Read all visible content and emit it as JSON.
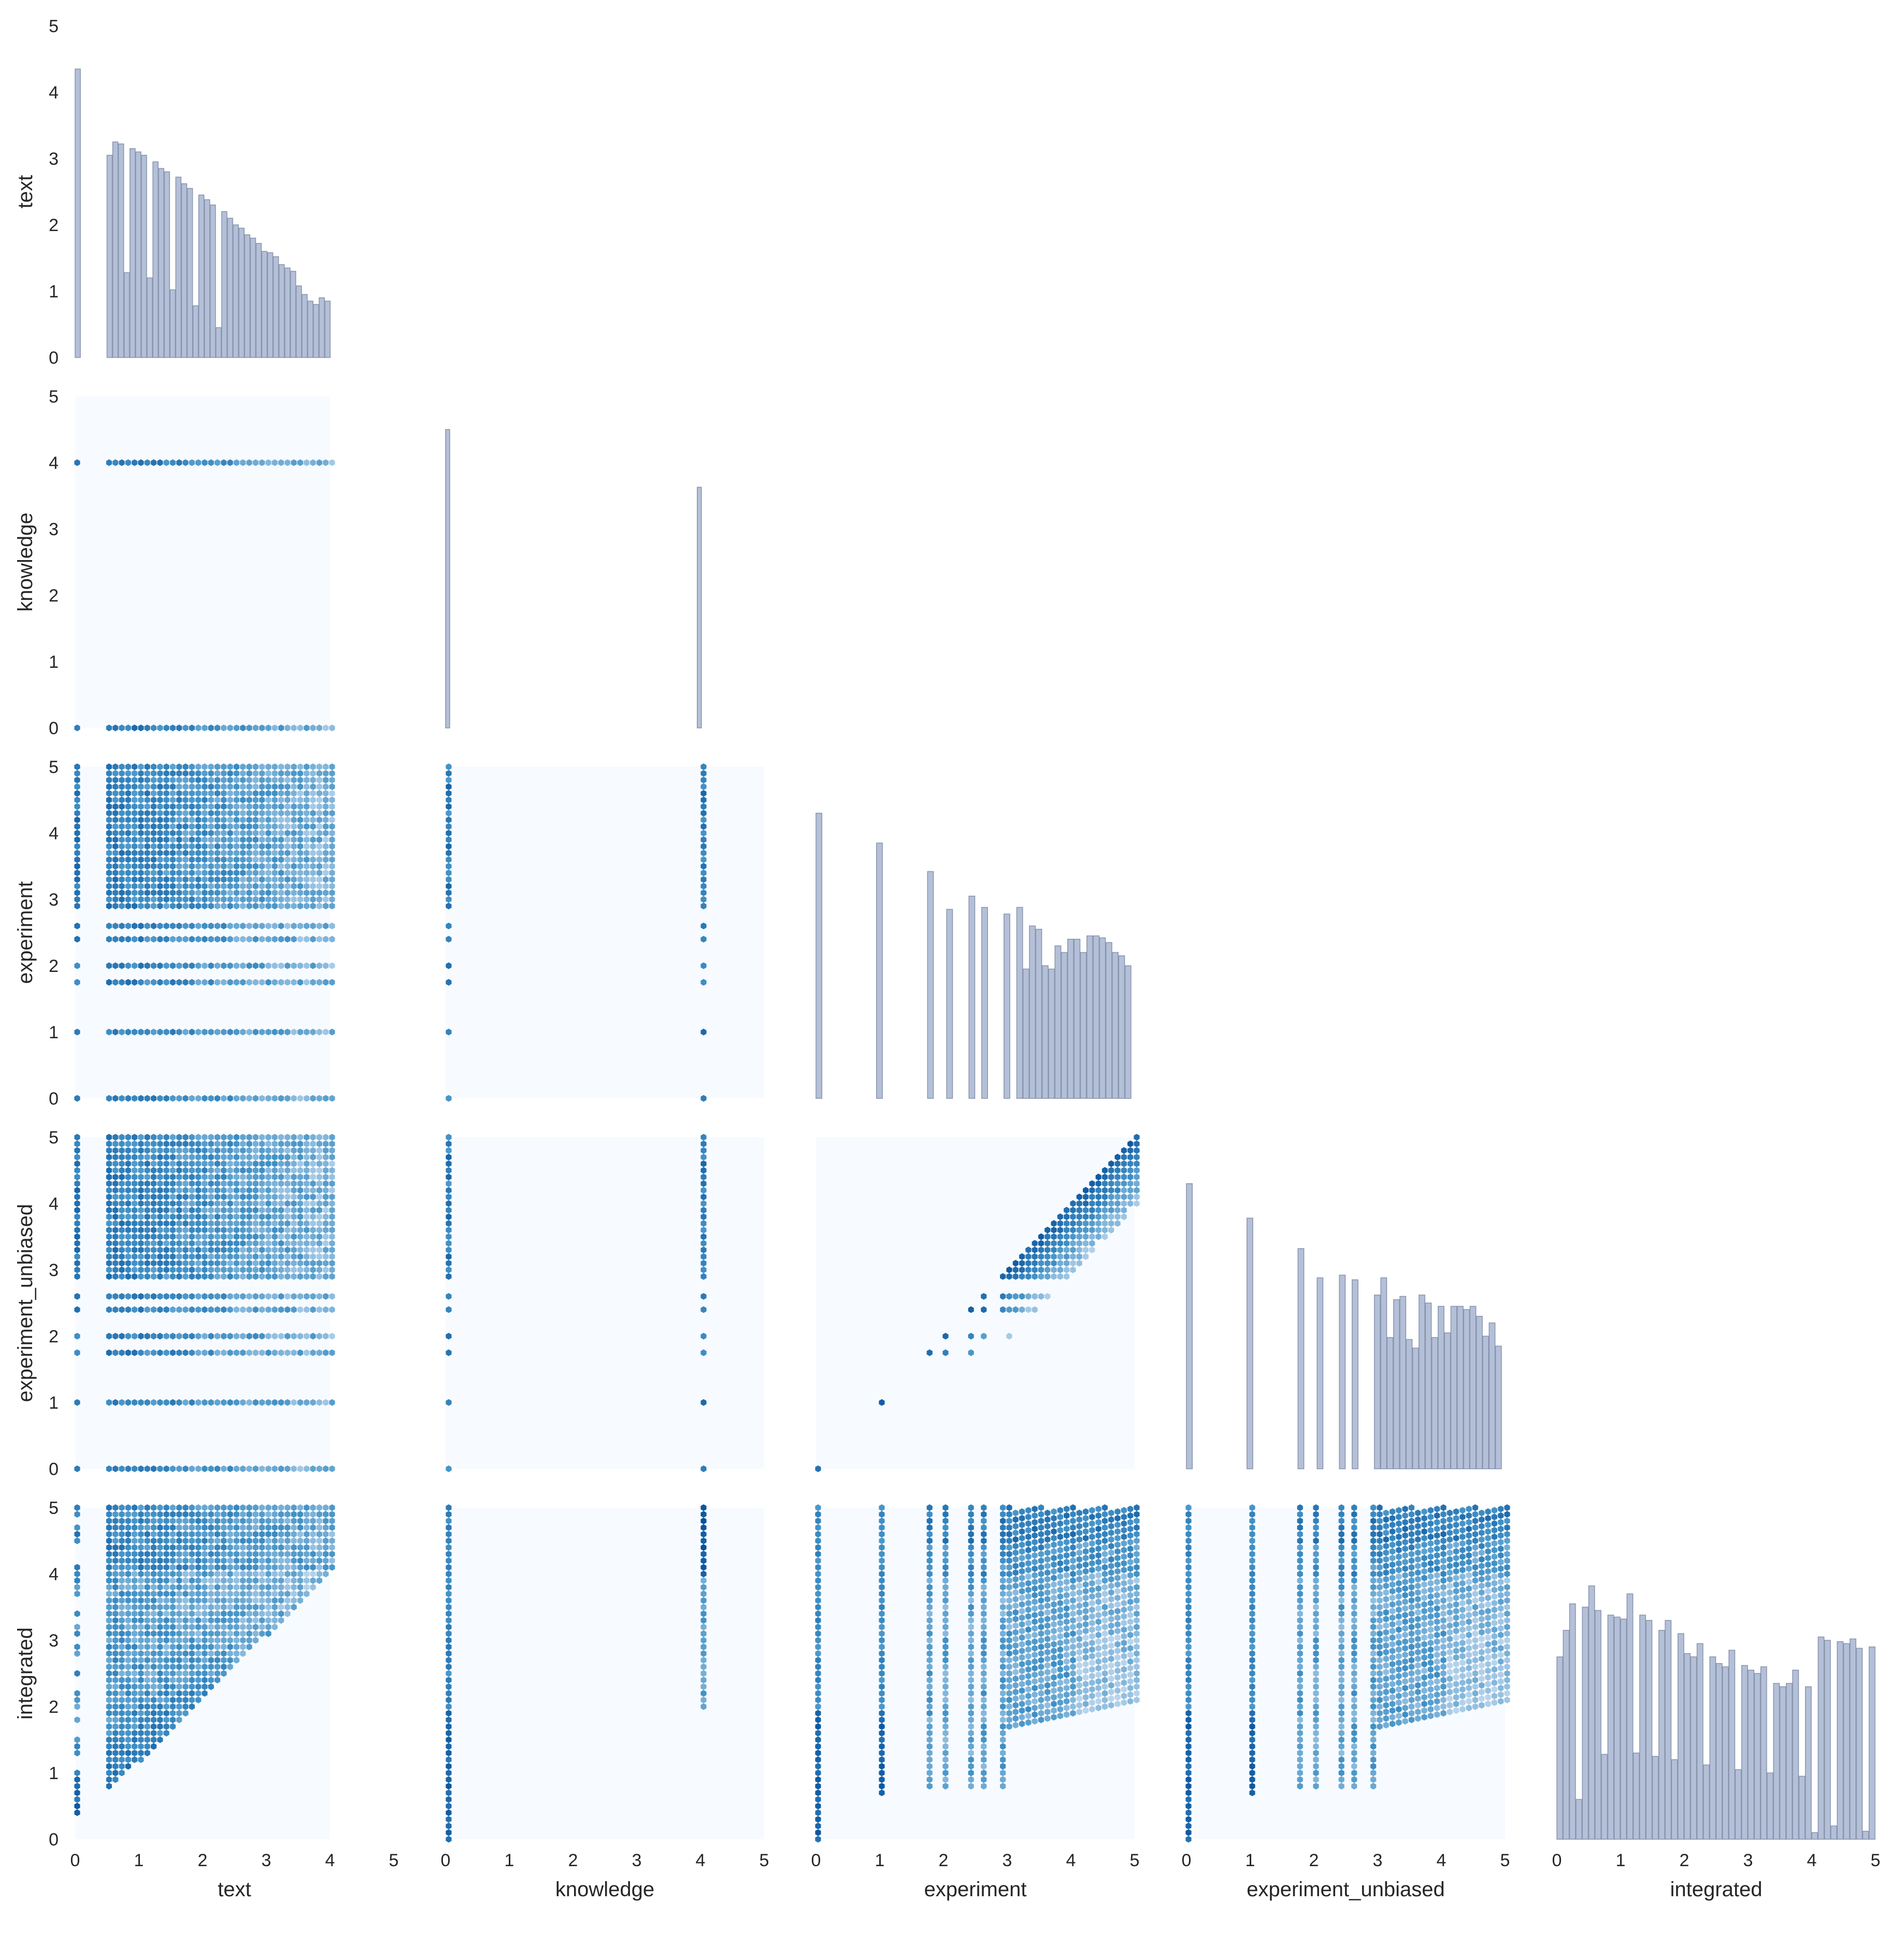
{
  "chart_data": {
    "type": "pairplot",
    "corner": true,
    "diag_kind": "histogram",
    "offdiag_kind": "hexbin",
    "variables": [
      "text",
      "knowledge",
      "experiment",
      "experiment_unbiased",
      "integrated"
    ],
    "axis_range": [
      0,
      5
    ],
    "tick_values": [
      0,
      1,
      2,
      3,
      4,
      5
    ],
    "tick_labels": [
      "0",
      "1",
      "2",
      "3",
      "4",
      "5"
    ],
    "grid": false,
    "colors": {
      "hist_fill": "#b4c0d8",
      "hist_edge": "#8893ad",
      "hex_background": "#f7fbff",
      "hex_light": "#c6dbef",
      "hex_mid": "#4292c6",
      "hex_dark": "#08519c"
    },
    "histograms": {
      "text": {
        "x": [
          0.0,
          0.5,
          0.59,
          0.68,
          0.77,
          0.86,
          0.95,
          1.04,
          1.13,
          1.22,
          1.31,
          1.4,
          1.49,
          1.58,
          1.67,
          1.76,
          1.85,
          1.94,
          2.03,
          2.12,
          2.21,
          2.3,
          2.39,
          2.48,
          2.57,
          2.66,
          2.75,
          2.84,
          2.93,
          3.02,
          3.11,
          3.2,
          3.29,
          3.38,
          3.47,
          3.56,
          3.65,
          3.74,
          3.83,
          3.92
        ],
        "heights": [
          4.35,
          3.05,
          3.25,
          3.22,
          1.28,
          3.15,
          3.1,
          3.05,
          1.2,
          2.95,
          2.85,
          2.8,
          1.02,
          2.72,
          2.62,
          2.55,
          0.78,
          2.45,
          2.38,
          2.3,
          0.45,
          2.2,
          2.1,
          2.0,
          1.95,
          1.85,
          1.8,
          1.72,
          1.6,
          1.58,
          1.52,
          1.4,
          1.35,
          1.3,
          1.08,
          0.95,
          0.85,
          0.8,
          0.9,
          0.85
        ]
      },
      "knowledge": {
        "x": [
          0.0,
          3.95
        ],
        "heights": [
          4.5,
          3.63
        ]
      },
      "experiment": {
        "x": [
          0.0,
          0.95,
          1.75,
          2.05,
          2.4,
          2.6,
          2.95,
          3.15,
          3.25,
          3.35,
          3.45,
          3.55,
          3.65,
          3.75,
          3.85,
          3.95,
          4.05,
          4.15,
          4.25,
          4.35,
          4.45,
          4.55,
          4.65,
          4.75,
          4.85
        ],
        "heights": [
          4.3,
          3.85,
          3.42,
          2.85,
          3.05,
          2.88,
          2.78,
          2.88,
          1.95,
          2.6,
          2.55,
          2.0,
          1.95,
          2.3,
          2.2,
          2.4,
          2.4,
          2.2,
          2.45,
          2.45,
          2.42,
          2.35,
          2.2,
          2.15,
          2.0
        ]
      },
      "experiment_unbiased": {
        "x": [
          0.0,
          0.95,
          1.75,
          2.05,
          2.4,
          2.6,
          2.95,
          3.05,
          3.15,
          3.25,
          3.35,
          3.45,
          3.55,
          3.65,
          3.75,
          3.85,
          3.95,
          4.05,
          4.15,
          4.25,
          4.35,
          4.45,
          4.55,
          4.65,
          4.75,
          4.85
        ],
        "heights": [
          4.3,
          3.78,
          3.32,
          2.88,
          2.92,
          2.85,
          2.62,
          2.88,
          1.98,
          2.55,
          2.6,
          1.95,
          1.82,
          2.62,
          2.5,
          1.98,
          2.45,
          2.05,
          2.45,
          2.45,
          2.4,
          2.45,
          2.3,
          2.0,
          2.2,
          1.85
        ]
      },
      "integrated": {
        "x": [
          0.0,
          0.1,
          0.2,
          0.3,
          0.4,
          0.5,
          0.6,
          0.7,
          0.8,
          0.9,
          1.0,
          1.1,
          1.2,
          1.3,
          1.4,
          1.5,
          1.6,
          1.7,
          1.8,
          1.9,
          2.0,
          2.1,
          2.2,
          2.3,
          2.4,
          2.5,
          2.6,
          2.7,
          2.8,
          2.9,
          3.0,
          3.1,
          3.2,
          3.3,
          3.4,
          3.5,
          3.6,
          3.7,
          3.8,
          3.9,
          4.0,
          4.1,
          4.2,
          4.3,
          4.4,
          4.5,
          4.6,
          4.7,
          4.8,
          4.9
        ],
        "heights": [
          2.75,
          3.15,
          3.55,
          0.6,
          3.5,
          3.82,
          3.45,
          1.28,
          3.38,
          3.35,
          3.32,
          3.7,
          1.3,
          3.38,
          3.3,
          1.25,
          3.15,
          3.3,
          1.2,
          3.1,
          2.8,
          2.75,
          2.95,
          1.12,
          2.75,
          2.65,
          2.6,
          2.85,
          1.05,
          2.62,
          2.55,
          2.5,
          2.6,
          1.0,
          2.35,
          2.3,
          2.35,
          2.55,
          0.95,
          2.3,
          0.1,
          3.05,
          3.0,
          0.2,
          2.98,
          2.95,
          3.02,
          2.88,
          0.12,
          2.9
        ]
      }
    },
    "hexbin_pairs": [
      {
        "x": "text",
        "y": "knowledge"
      },
      {
        "x": "text",
        "y": "experiment"
      },
      {
        "x": "knowledge",
        "y": "experiment"
      },
      {
        "x": "text",
        "y": "experiment_unbiased"
      },
      {
        "x": "knowledge",
        "y": "experiment_unbiased"
      },
      {
        "x": "experiment",
        "y": "experiment_unbiased"
      },
      {
        "x": "text",
        "y": "integrated"
      },
      {
        "x": "knowledge",
        "y": "integrated"
      },
      {
        "x": "experiment",
        "y": "integrated"
      },
      {
        "x": "experiment_unbiased",
        "y": "integrated"
      }
    ],
    "hex_levels": {
      "text": [
        0,
        0.5,
        0.6,
        0.7,
        0.8,
        0.9,
        1.0,
        1.1,
        1.2,
        1.3,
        1.4,
        1.5,
        1.6,
        1.7,
        1.8,
        1.9,
        2.0,
        2.1,
        2.2,
        2.3,
        2.4,
        2.5,
        2.6,
        2.7,
        2.8,
        2.9,
        3.0,
        3.1,
        3.2,
        3.3,
        3.4,
        3.5,
        3.6,
        3.7,
        3.8,
        3.9,
        4.0
      ],
      "knowledge": [
        0,
        4
      ],
      "experiment": [
        0,
        1,
        1.75,
        2.0,
        2.4,
        2.6,
        2.9,
        3.0,
        3.1,
        3.2,
        3.3,
        3.4,
        3.5,
        3.6,
        3.7,
        3.8,
        3.9,
        4.0,
        4.1,
        4.2,
        4.3,
        4.4,
        4.5,
        4.6,
        4.7,
        4.8,
        4.9,
        5.0
      ],
      "experiment_unbiased": [
        0,
        1,
        1.75,
        2.0,
        2.4,
        2.6,
        2.9,
        3.0,
        3.1,
        3.2,
        3.3,
        3.4,
        3.5,
        3.6,
        3.7,
        3.8,
        3.9,
        4.0,
        4.1,
        4.2,
        4.3,
        4.4,
        4.5,
        4.6,
        4.7,
        4.8,
        4.9,
        5.0
      ]
    }
  }
}
